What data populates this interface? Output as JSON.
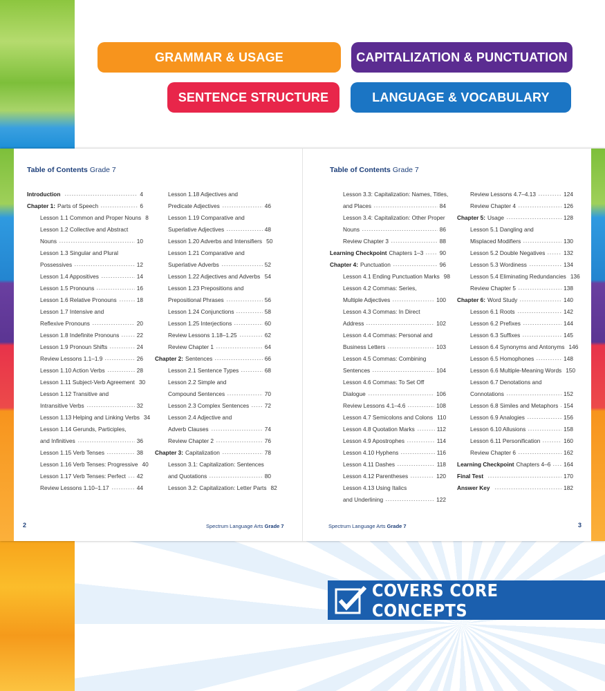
{
  "badges": [
    "GRAMMAR & USAGE",
    "CAPITALIZATION & PUNCTUATION",
    "SENTENCE STRUCTURE",
    "LANGUAGE & VOCABULARY"
  ],
  "left_page": {
    "heading": {
      "bold": "Table of Contents",
      "rest": "Grade 7"
    },
    "columns": [
      [
        {
          "b": "Introduction",
          "p": 4
        },
        {
          "b": "Chapter 1:",
          "t": "Parts of Speech",
          "p": 6
        },
        {
          "t": "Lesson 1.1 Common and Proper Nouns",
          "p": 8
        },
        {
          "t": "Lesson 1.2 Collective and Abstract"
        },
        {
          "t": "Nouns",
          "p": 10
        },
        {
          "t": "Lesson 1.3 Singular and Plural"
        },
        {
          "t": "Possessives",
          "p": 12
        },
        {
          "t": "Lesson 1.4 Appositives",
          "p": 14
        },
        {
          "t": "Lesson 1.5 Pronouns",
          "p": 16
        },
        {
          "t": "Lesson 1.6 Relative Pronouns",
          "p": 18
        },
        {
          "t": "Lesson 1.7 Intensive and"
        },
        {
          "t": "Reflexive Pronouns",
          "p": 20
        },
        {
          "t": "Lesson 1.8 Indefinite Pronouns",
          "p": 22
        },
        {
          "t": "Lesson 1.9 Pronoun Shifts",
          "p": 24
        },
        {
          "t": "Review Lessons 1.1–1.9",
          "p": 26
        },
        {
          "t": "Lesson 1.10 Action Verbs",
          "p": 28
        },
        {
          "t": "Lesson 1.11 Subject-Verb Agreement",
          "p": 30
        },
        {
          "t": "Lesson 1.12 Transitive and"
        },
        {
          "t": "Intransitive Verbs",
          "p": 32
        },
        {
          "t": "Lesson 1.13 Helping and Linking Verbs",
          "p": 34
        },
        {
          "t": "Lesson 1.14 Gerunds, Participles,"
        },
        {
          "t": "and Infinitives",
          "p": 36
        },
        {
          "t": "Lesson 1.15 Verb Tenses",
          "p": 38
        },
        {
          "t": "Lesson 1.16 Verb Tenses: Progressive",
          "p": 40
        },
        {
          "t": "Lesson 1.17 Verb Tenses: Perfect",
          "p": 42
        },
        {
          "t": "Review Lessons 1.10–1.17",
          "p": 44
        }
      ],
      [
        {
          "t": "Lesson 1.18 Adjectives and"
        },
        {
          "t": "Predicate Adjectives",
          "p": 46
        },
        {
          "t": "Lesson 1.19 Comparative and"
        },
        {
          "t": "Superlative Adjectives",
          "p": 48
        },
        {
          "t": "Lesson 1.20 Adverbs and Intensifiers",
          "p": 50
        },
        {
          "t": "Lesson 1.21 Comparative and"
        },
        {
          "t": "Superlative Adverbs",
          "p": 52
        },
        {
          "t": "Lesson 1.22 Adjectives and Adverbs",
          "p": 54
        },
        {
          "t": "Lesson 1.23 Prepositions and"
        },
        {
          "t": "Prepositional Phrases",
          "p": 56
        },
        {
          "t": "Lesson 1.24 Conjunctions",
          "p": 58
        },
        {
          "t": "Lesson 1.25 Interjections",
          "p": 60
        },
        {
          "t": "Review Lessons 1.18–1.25",
          "p": 62
        },
        {
          "t": "Review Chapter 1",
          "p": 64
        },
        {
          "b": "Chapter 2:",
          "t": "Sentences",
          "p": 66
        },
        {
          "t": "Lesson 2.1 Sentence Types",
          "p": 68
        },
        {
          "t": "Lesson 2.2 Simple and"
        },
        {
          "t": "Compound Sentences",
          "p": 70
        },
        {
          "t": "Lesson 2.3 Complex Sentences",
          "p": 72
        },
        {
          "t": "Lesson 2.4 Adjective and"
        },
        {
          "t": "Adverb Clauses",
          "p": 74
        },
        {
          "t": "Review Chapter 2",
          "p": 76
        },
        {
          "b": "Chapter 3:",
          "t": "Capitalization",
          "p": 78
        },
        {
          "t": "Lesson 3.1: Capitalization: Sentences"
        },
        {
          "t": "and Quotations",
          "p": 80
        },
        {
          "t": "Lesson 3.2: Capitalization: Letter Parts",
          "p": 82
        }
      ]
    ],
    "footer": {
      "number": "2",
      "series": "Spectrum Language Arts",
      "grade": "Grade 7"
    }
  },
  "right_page": {
    "heading": {
      "bold": "Table of Contents",
      "rest": "Grade 7"
    },
    "columns": [
      [
        {
          "t": "Lesson 3.3: Capitalization: Names, Titles,"
        },
        {
          "t": "and Places",
          "p": 84
        },
        {
          "t": "Lesson 3.4: Capitalization: Other Proper"
        },
        {
          "t": "Nouns",
          "p": 86
        },
        {
          "t": "Review Chapter 3",
          "p": 88
        },
        {
          "b": "Learning Checkpoint",
          "t": "Chapters 1–3",
          "p": 90
        },
        {
          "b": "Chapter 4:",
          "t": "Punctuation",
          "p": 96
        },
        {
          "t": "Lesson 4.1 Ending Punctuation Marks",
          "p": 98
        },
        {
          "t": "Lesson 4.2 Commas: Series,"
        },
        {
          "t": "Multiple Adjectives",
          "p": 100
        },
        {
          "t": "Lesson 4.3 Commas: In Direct"
        },
        {
          "t": "Address",
          "p": 102
        },
        {
          "t": "Lesson 4.4 Commas: Personal and"
        },
        {
          "t": "Business Letters",
          "p": 103
        },
        {
          "t": "Lesson 4.5 Commas: Combining"
        },
        {
          "t": "Sentences",
          "p": 104
        },
        {
          "t": "Lesson 4.6 Commas: To Set Off"
        },
        {
          "t": "Dialogue",
          "p": 106
        },
        {
          "t": "Review Lessons 4.1–4.6",
          "p": 108
        },
        {
          "t": "Lesson 4.7 Semicolons and Colons",
          "p": 110
        },
        {
          "t": "Lesson 4.8 Quotation Marks",
          "p": 112
        },
        {
          "t": "Lesson 4.9 Apostrophes",
          "p": 114
        },
        {
          "t": "Lesson 4.10 Hyphens",
          "p": 116
        },
        {
          "t": "Lesson 4.11 Dashes",
          "p": 118
        },
        {
          "t": "Lesson 4.12 Parentheses",
          "p": 120
        },
        {
          "t": "Lesson 4.13 Using Italics"
        },
        {
          "t": "and Underlining",
          "p": 122
        }
      ],
      [
        {
          "t": "Review Lessons 4.7–4.13",
          "p": 124
        },
        {
          "t": "Review Chapter 4",
          "p": 126
        },
        {
          "b": "Chapter 5:",
          "t": "Usage",
          "p": 128
        },
        {
          "t": "Lesson 5.1 Dangling and"
        },
        {
          "t": "Misplaced Modifiers",
          "p": 130
        },
        {
          "t": "Lesson 5.2 Double Negatives",
          "p": 132
        },
        {
          "t": "Lesson 5.3 Wordiness",
          "p": 134
        },
        {
          "t": "Lesson 5.4 Eliminating Redundancies",
          "p": 136
        },
        {
          "t": "Review Chapter 5",
          "p": 138
        },
        {
          "b": "Chapter 6:",
          "t": "Word Study",
          "p": 140
        },
        {
          "t": "Lesson 6.1 Roots",
          "p": 142
        },
        {
          "t": "Lesson 6.2 Prefixes",
          "p": 144
        },
        {
          "t": "Lesson 6.3 Suffixes",
          "p": 145
        },
        {
          "t": "Lesson 6.4 Synonyms and Antonyms",
          "p": 146
        },
        {
          "t": "Lesson 6.5 Homophones",
          "p": 148
        },
        {
          "t": "Lesson 6.6 Multiple-Meaning Words",
          "p": 150
        },
        {
          "t": "Lesson 6.7 Denotations and"
        },
        {
          "t": "Connotations",
          "p": 152
        },
        {
          "t": "Lesson 6.8 Similes and Metaphors",
          "p": 154
        },
        {
          "t": "Lesson 6.9 Analogies",
          "p": 156
        },
        {
          "t": "Lesson 6.10 Allusions",
          "p": 158
        },
        {
          "t": "Lesson 6.11 Personification",
          "p": 160
        },
        {
          "t": "Review Chapter 6",
          "p": 162
        },
        {
          "b": "Learning Checkpoint",
          "t": "Chapters 4–6",
          "p": 164
        },
        {
          "b": "Final Test",
          "p": 170
        },
        {
          "b": "Answer Key",
          "p": 182
        }
      ]
    ],
    "footer": {
      "number": "3",
      "series": "Spectrum Language Arts",
      "grade": "Grade 7"
    }
  },
  "banner": "COVERS CORE CONCEPTS"
}
